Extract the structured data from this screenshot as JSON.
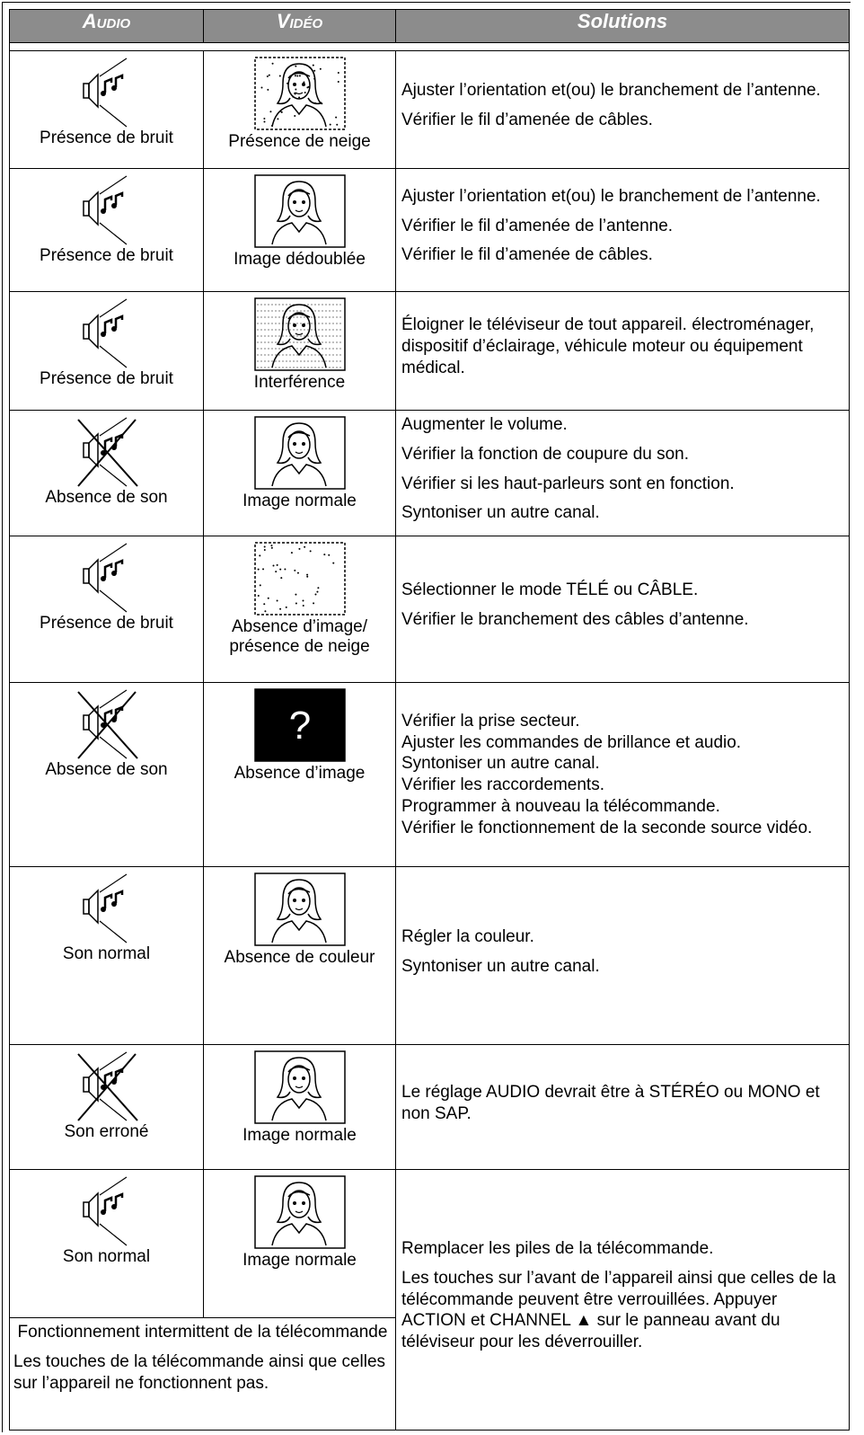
{
  "header": {
    "audio": "Audio",
    "video": "Vidéo",
    "solutions": "Solutions"
  },
  "rows": [
    {
      "audio": "Présence de bruit",
      "video": "Présence de neige",
      "solutions": [
        "Ajuster l’orientation et(ou) le branchement de l’antenne.",
        "Vérifier le fil d’amenée de câbles."
      ]
    },
    {
      "audio": "Présence de bruit",
      "video": "Image dédoublée",
      "solutions": [
        "Ajuster l’orientation et(ou) le  branchement de l’antenne.",
        "Vérifier le fil d’amenée de l’antenne.",
        "Vérifier le fil d’amenée de câbles."
      ]
    },
    {
      "audio": "Présence de bruit",
      "video": "Interférence",
      "solutions": [
        "Éloigner le téléviseur de tout appareil. électroménager, dispositif d’éclairage, véhicule moteur ou équipement médical."
      ]
    },
    {
      "audio": "Absence de son",
      "video": "Image normale",
      "solutions": [
        "Augmenter le volume.",
        "Vérifier la fonction de coupure du son.",
        "Vérifier si les haut-parleurs sont en fonction.",
        "Syntoniser un autre canal."
      ]
    },
    {
      "audio": "Présence de bruit",
      "video": "Absence d’image/ présence de neige",
      "solutions": [
        "Sélectionner le mode TÉLÉ ou CÂBLE.",
        "Vérifier le branchement des câbles d’antenne."
      ]
    },
    {
      "audio": "Absence de son",
      "video": "Absence d’image",
      "video_icon_text": "?",
      "solutions": [
        "Vérifier la prise secteur.",
        "Ajuster les commandes de brillance et audio.",
        "Syntoniser un autre canal.",
        "Vérifier les raccordements.",
        "Programmer à nouveau la télécommande.",
        "Vérifier le fonctionnement de la seconde source  vidéo."
      ]
    },
    {
      "audio": "Son normal",
      "video": "Absence de couleur",
      "solutions": [
        "Régler la couleur.",
        "Syntoniser un autre canal."
      ]
    },
    {
      "audio": "Son erroné",
      "video": "Image normale",
      "solutions": [
        "Le réglage AUDIO devrait être à STÉRÉO ou MONO et non SAP."
      ]
    },
    {
      "audio": "Son normal",
      "video": "Image normale",
      "solutions": [
        "Remplacer les piles de la télécommande.",
        "Les touches sur l’avant de l’appareil ainsi que celles de la télécommande peuvent être verrouillées. Appuyer ACTION et CHANNEL ▲ sur le panneau avant du téléviseur pour les déverrouiller."
      ]
    }
  ],
  "remote_issue": {
    "title": "Fonctionnement intermittent de la télécommande",
    "text": "Les touches de la télécommande ainsi que celles sur l’appareil ne fonctionnent pas."
  }
}
